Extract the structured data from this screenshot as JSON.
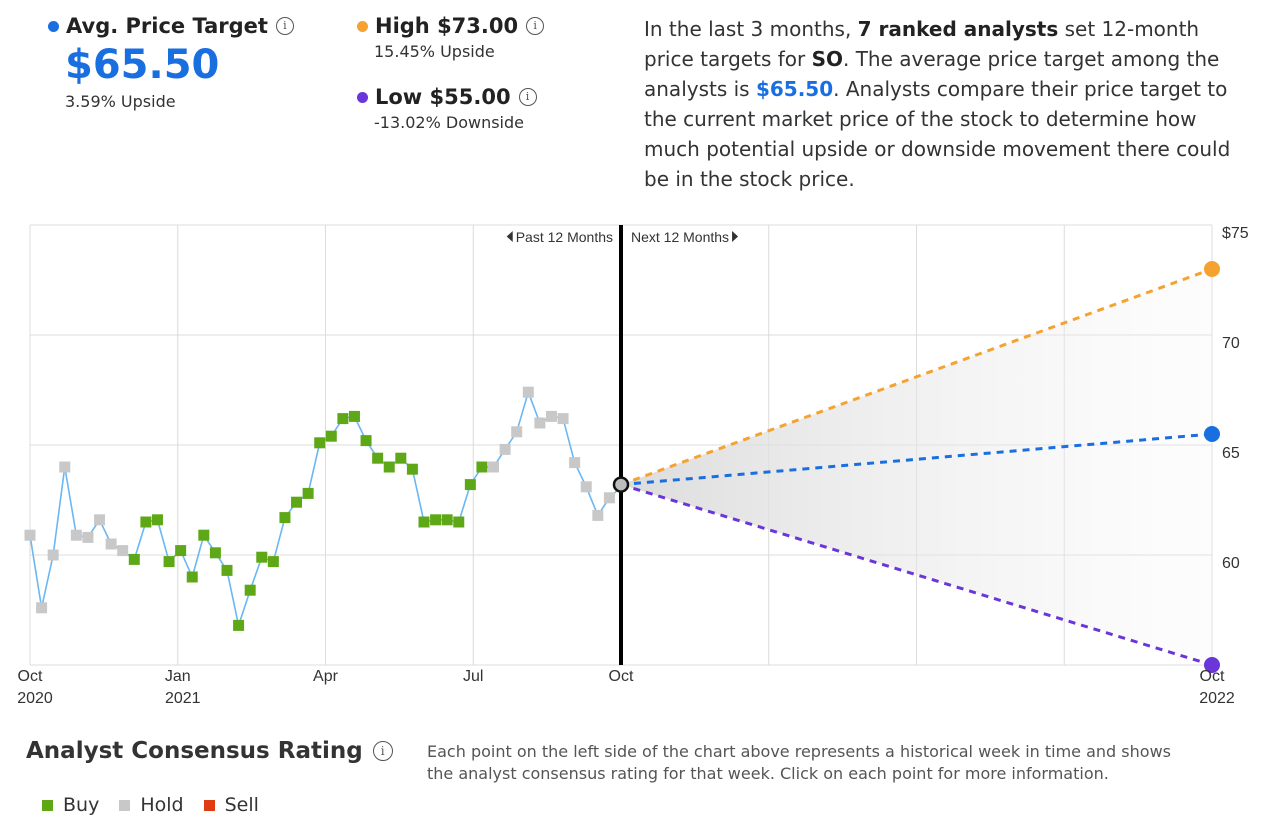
{
  "stats": {
    "avg": {
      "label": "Avg. Price Target",
      "value": "$65.50",
      "sub": "3.59% Upside",
      "color": "#1a6fe0"
    },
    "high": {
      "label": "High $73.00",
      "sub": "15.45% Upside",
      "color": "#f5a330"
    },
    "low": {
      "label": "Low $55.00",
      "sub": "-13.02% Downside",
      "color": "#6a35d9"
    },
    "info_icon": "info-icon"
  },
  "summary": {
    "p1": "In the last 3 months, ",
    "analysts": "7 ranked analysts",
    "p2": " set 12-month price targets for ",
    "ticker": "SO",
    "p3": ". The average price target among the analysts is ",
    "avg": "$65.50",
    "p4": ". Analysts compare their price target to the current market price of the stock to determine how much potential upside or downside movement there could be in the stock price."
  },
  "chart_data": {
    "type": "line",
    "past_label": "Past 12 Months",
    "next_label": "Next 12 Months",
    "ylim": [
      55,
      75
    ],
    "y_ticks": [
      "$75",
      "70",
      "65",
      "60"
    ],
    "y_tick_values": [
      75,
      70,
      65,
      60
    ],
    "x_ticks": [
      {
        "label": "Oct",
        "year": "2020",
        "t": 0
      },
      {
        "label": "Jan",
        "year": "2021",
        "t": 3
      },
      {
        "label": "Apr",
        "year": "",
        "t": 6
      },
      {
        "label": "Jul",
        "year": "",
        "t": 9
      },
      {
        "label": "Oct",
        "year": "",
        "t": 12
      },
      {
        "label": "Oct",
        "year": "2022",
        "t": 24
      }
    ],
    "history": {
      "values": [
        60.9,
        57.6,
        60.0,
        64.0,
        60.9,
        60.8,
        61.6,
        60.5,
        60.2,
        59.8,
        61.5,
        61.6,
        59.7,
        60.2,
        59.0,
        60.9,
        60.1,
        59.3,
        56.8,
        58.4,
        59.9,
        59.7,
        61.7,
        62.4,
        62.8,
        65.1,
        65.4,
        66.2,
        66.3,
        65.2,
        64.4,
        64.0,
        64.4,
        63.9,
        61.5,
        61.6,
        61.6,
        61.5,
        63.2,
        64.0,
        64.0,
        64.8,
        65.6,
        67.4,
        66.0,
        66.3,
        66.2,
        64.2,
        63.1,
        61.8,
        62.6,
        63.1
      ],
      "ratings": [
        "Hold",
        "Hold",
        "Hold",
        "Hold",
        "Hold",
        "Hold",
        "Hold",
        "Hold",
        "Hold",
        "Buy",
        "Buy",
        "Buy",
        "Buy",
        "Buy",
        "Buy",
        "Buy",
        "Buy",
        "Buy",
        "Buy",
        "Buy",
        "Buy",
        "Buy",
        "Buy",
        "Buy",
        "Buy",
        "Buy",
        "Buy",
        "Buy",
        "Buy",
        "Buy",
        "Buy",
        "Buy",
        "Buy",
        "Buy",
        "Buy",
        "Buy",
        "Buy",
        "Buy",
        "Buy",
        "Buy",
        "Hold",
        "Hold",
        "Hold",
        "Hold",
        "Hold",
        "Hold",
        "Hold",
        "Hold",
        "Hold",
        "Hold",
        "Hold",
        "Hold"
      ]
    },
    "current_price": 63.2,
    "projections": [
      {
        "name": "High",
        "value": 73.0,
        "color": "#f5a330"
      },
      {
        "name": "Average",
        "value": 65.5,
        "color": "#1a6fe0"
      },
      {
        "name": "Low",
        "value": 55.0,
        "color": "#6a35d9"
      }
    ],
    "colors": {
      "Buy": "#5ea817",
      "Hold": "#c8c8c8",
      "Sell": "#e03c13",
      "line": "#6ab7f3"
    }
  },
  "rating": {
    "title": "Analyst Consensus Rating",
    "legend": [
      {
        "label": "Buy",
        "color": "#5ea817"
      },
      {
        "label": "Hold",
        "color": "#c8c8c8"
      },
      {
        "label": "Sell",
        "color": "#e03c13"
      }
    ],
    "description": "Each point on the left side of the chart above represents a historical week in time and shows the analyst consensus rating for that week. Click on each point for more information."
  }
}
